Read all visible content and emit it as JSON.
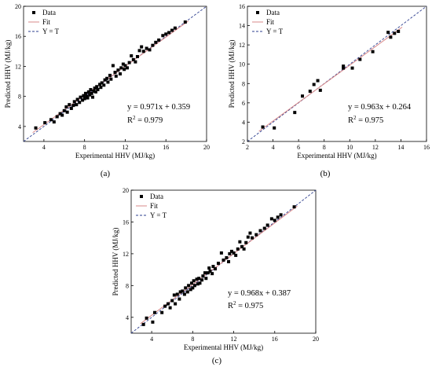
{
  "colors": {
    "data": "#000000",
    "fit": "#d98a8a",
    "identity": "#2e3f8f",
    "axis": "#000000"
  },
  "chart_data": [
    {
      "type": "scatter",
      "panel_label": "(a)",
      "xlabel": "Experimental HHV (MJ/kg)",
      "ylabel": "Predicted HHV (MJ/kg)",
      "xlim": [
        2,
        20
      ],
      "ylim": [
        2,
        20
      ],
      "xticks": [
        "4",
        "8",
        "12",
        "16",
        "20"
      ],
      "yticks": [
        "4",
        "8",
        "12",
        "16",
        "20"
      ],
      "legend": {
        "placement": "top-left",
        "entries": [
          "Data",
          "Fit",
          "Y = T"
        ]
      },
      "equation": "y = 0.971x + 0.359",
      "r2_prefix": "R",
      "r2_sup": "2",
      "r2_value": " = 0.979",
      "fit": {
        "slope": 0.971,
        "intercept": 0.359
      },
      "points": [
        [
          3.2,
          3.8
        ],
        [
          4.1,
          4.5
        ],
        [
          4.7,
          4.9
        ],
        [
          5.0,
          4.6
        ],
        [
          5.3,
          5.3
        ],
        [
          5.6,
          5.7
        ],
        [
          5.8,
          5.5
        ],
        [
          6.0,
          6.1
        ],
        [
          6.2,
          6.6
        ],
        [
          6.3,
          5.9
        ],
        [
          6.5,
          6.9
        ],
        [
          6.7,
          6.4
        ],
        [
          6.9,
          6.8
        ],
        [
          7.0,
          7.3
        ],
        [
          7.2,
          6.9
        ],
        [
          7.3,
          7.6
        ],
        [
          7.5,
          7.2
        ],
        [
          7.6,
          7.9
        ],
        [
          7.8,
          7.5
        ],
        [
          7.9,
          8.1
        ],
        [
          8.0,
          7.7
        ],
        [
          8.1,
          8.4
        ],
        [
          8.2,
          8.0
        ],
        [
          8.3,
          7.8
        ],
        [
          8.4,
          8.6
        ],
        [
          8.5,
          8.2
        ],
        [
          8.6,
          8.9
        ],
        [
          8.7,
          8.4
        ],
        [
          8.8,
          7.9
        ],
        [
          8.9,
          8.7
        ],
        [
          9.0,
          9.1
        ],
        [
          9.1,
          8.6
        ],
        [
          9.2,
          9.3
        ],
        [
          9.3,
          8.9
        ],
        [
          9.5,
          9.6
        ],
        [
          9.6,
          9.2
        ],
        [
          9.7,
          9.8
        ],
        [
          9.9,
          9.5
        ],
        [
          10.0,
          10.2
        ],
        [
          10.2,
          10.4
        ],
        [
          10.3,
          9.9
        ],
        [
          10.5,
          10.8
        ],
        [
          10.6,
          10.3
        ],
        [
          10.8,
          12.1
        ],
        [
          11.0,
          11.2
        ],
        [
          11.1,
          10.7
        ],
        [
          11.3,
          11.5
        ],
        [
          11.5,
          11.0
        ],
        [
          11.6,
          11.8
        ],
        [
          11.8,
          12.3
        ],
        [
          11.9,
          11.6
        ],
        [
          12.0,
          12.1
        ],
        [
          12.2,
          11.8
        ],
        [
          12.4,
          12.5
        ],
        [
          12.6,
          13.4
        ],
        [
          12.8,
          12.9
        ],
        [
          13.0,
          12.6
        ],
        [
          13.2,
          13.3
        ],
        [
          13.4,
          14.1
        ],
        [
          13.6,
          14.6
        ],
        [
          13.8,
          14.0
        ],
        [
          14.1,
          14.4
        ],
        [
          14.4,
          14.2
        ],
        [
          14.7,
          14.8
        ],
        [
          15.0,
          15.2
        ],
        [
          15.3,
          15.5
        ],
        [
          15.7,
          16.1
        ],
        [
          16.0,
          16.3
        ],
        [
          16.3,
          16.5
        ],
        [
          16.6,
          16.8
        ],
        [
          16.9,
          17.1
        ],
        [
          17.9,
          17.9
        ]
      ]
    },
    {
      "type": "scatter",
      "panel_label": "(b)",
      "xlabel": "Experimental HHV (MJ/kg)",
      "ylabel": "Predicted HHV (MJ/kg)",
      "xlim": [
        2,
        16
      ],
      "ylim": [
        2,
        16
      ],
      "xticks": [
        "2",
        "4",
        "6",
        "8",
        "10",
        "12",
        "14",
        "16"
      ],
      "yticks": [
        "2",
        "4",
        "6",
        "8",
        "10",
        "12",
        "14",
        "16"
      ],
      "legend": {
        "placement": "top-left",
        "entries": [
          "Data",
          "Fit",
          "Y = T"
        ]
      },
      "equation": "y = 0.963x + 0.264",
      "r2_prefix": "R",
      "r2_sup": "2",
      "r2_value": " = 0.975",
      "fit": {
        "slope": 0.963,
        "intercept": 0.264
      },
      "points": [
        [
          3.2,
          3.5
        ],
        [
          4.1,
          3.4
        ],
        [
          5.7,
          5.0
        ],
        [
          6.3,
          6.7
        ],
        [
          6.9,
          7.2
        ],
        [
          7.2,
          7.9
        ],
        [
          7.5,
          8.3
        ],
        [
          7.7,
          7.3
        ],
        [
          9.5,
          9.6
        ],
        [
          9.5,
          9.8
        ],
        [
          10.2,
          9.6
        ],
        [
          10.8,
          10.5
        ],
        [
          11.8,
          11.3
        ],
        [
          13.0,
          13.3
        ],
        [
          13.2,
          12.8
        ],
        [
          13.5,
          13.2
        ],
        [
          13.8,
          13.4
        ]
      ]
    },
    {
      "type": "scatter",
      "panel_label": "(c)",
      "xlabel": "Experimental HHV (MJ/kg)",
      "ylabel": "Predicted HHV (MJ/kg)",
      "xlim": [
        2,
        20
      ],
      "ylim": [
        2,
        20
      ],
      "xticks": [
        "4",
        "8",
        "12",
        "16",
        "20"
      ],
      "yticks": [
        "4",
        "8",
        "12",
        "16",
        "20"
      ],
      "legend": {
        "placement": "top-left",
        "entries": [
          "Data",
          "Fit",
          "Y = T"
        ]
      },
      "equation": "y = 0.968x + 0.387",
      "r2_prefix": "R",
      "r2_sup": "2",
      "r2_value": " = 0.975",
      "fit": {
        "slope": 0.968,
        "intercept": 0.387
      },
      "points": [
        [
          3.2,
          3.1
        ],
        [
          3.5,
          3.9
        ],
        [
          4.1,
          3.4
        ],
        [
          4.3,
          4.6
        ],
        [
          5.0,
          4.6
        ],
        [
          5.3,
          5.4
        ],
        [
          5.6,
          5.7
        ],
        [
          5.8,
          5.2
        ],
        [
          6.0,
          6.1
        ],
        [
          6.2,
          6.8
        ],
        [
          6.3,
          5.7
        ],
        [
          6.5,
          6.9
        ],
        [
          6.7,
          6.3
        ],
        [
          6.8,
          7.2
        ],
        [
          7.0,
          7.3
        ],
        [
          7.2,
          6.9
        ],
        [
          7.3,
          7.7
        ],
        [
          7.5,
          7.2
        ],
        [
          7.6,
          8.0
        ],
        [
          7.8,
          7.5
        ],
        [
          7.9,
          8.3
        ],
        [
          8.0,
          7.7
        ],
        [
          8.1,
          8.6
        ],
        [
          8.2,
          8.0
        ],
        [
          8.4,
          8.8
        ],
        [
          8.5,
          8.2
        ],
        [
          8.6,
          8.9
        ],
        [
          8.7,
          8.3
        ],
        [
          8.9,
          8.7
        ],
        [
          9.0,
          9.2
        ],
        [
          9.2,
          9.6
        ],
        [
          9.3,
          8.9
        ],
        [
          9.5,
          9.6
        ],
        [
          9.6,
          10.2
        ],
        [
          9.7,
          9.8
        ],
        [
          9.9,
          9.5
        ],
        [
          10.0,
          10.4
        ],
        [
          10.2,
          10.1
        ],
        [
          10.5,
          10.8
        ],
        [
          10.8,
          12.1
        ],
        [
          11.0,
          11.2
        ],
        [
          11.3,
          11.5
        ],
        [
          11.5,
          11.0
        ],
        [
          11.6,
          12.0
        ],
        [
          11.8,
          12.3
        ],
        [
          12.0,
          12.1
        ],
        [
          12.2,
          11.8
        ],
        [
          12.4,
          12.6
        ],
        [
          12.6,
          13.5
        ],
        [
          12.8,
          12.9
        ],
        [
          13.0,
          12.6
        ],
        [
          13.2,
          13.4
        ],
        [
          13.4,
          14.1
        ],
        [
          13.6,
          14.6
        ],
        [
          13.8,
          14.0
        ],
        [
          14.2,
          14.4
        ],
        [
          14.6,
          14.9
        ],
        [
          15.0,
          15.2
        ],
        [
          15.3,
          15.6
        ],
        [
          15.7,
          16.4
        ],
        [
          16.0,
          16.2
        ],
        [
          16.3,
          16.6
        ],
        [
          16.6,
          16.9
        ],
        [
          17.9,
          17.9
        ]
      ]
    }
  ]
}
